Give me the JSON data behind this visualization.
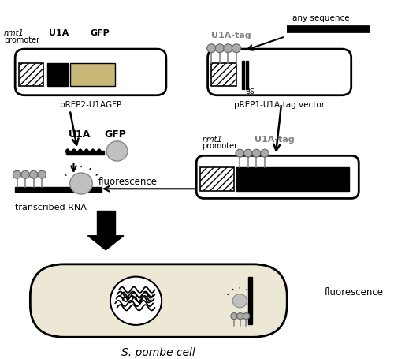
{
  "fig_width": 5.0,
  "fig_height": 4.56,
  "dpi": 100,
  "bg_color": "#ffffff",
  "colors": {
    "black": "#000000",
    "gray": "#808080",
    "light_gray": "#c0c0c0",
    "tan": "#c8b878",
    "cell_fill": "#ede8d5",
    "white": "#ffffff"
  },
  "plasmid1_label": "pREP2-U1AGFP",
  "plasmid2_label": "pREP1-U1A-tag vector",
  "cell_label": "S. pombe cell",
  "fluorescence_label": "fluorescence",
  "transcribed_rna_label": "transcribed RNA",
  "u1a_tag_label": "U1A-tag",
  "any_sequence_label": "any sequence",
  "nmt1_label": "nmt1",
  "promoter_label": "promoter",
  "u1a_label": "U1A",
  "gfp_label": "GFP",
  "bs_label": "BS"
}
